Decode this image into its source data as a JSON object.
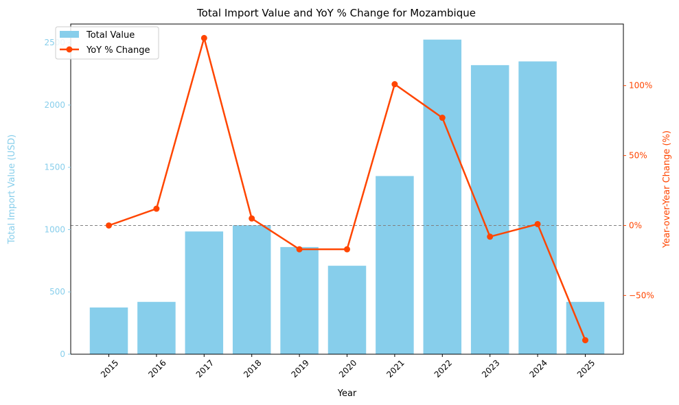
{
  "chart_data": {
    "type": "bar",
    "title": "Total Import Value and YoY % Change for Mozambique",
    "xlabel": "Year",
    "ylabel_left": "Total Import Value (USD)",
    "ylabel_right": "Year-over-Year Change (%)",
    "categories": [
      "2015",
      "2016",
      "2017",
      "2018",
      "2019",
      "2020",
      "2021",
      "2022",
      "2023",
      "2024",
      "2025"
    ],
    "series": [
      {
        "name": "Total Value",
        "type": "bar",
        "axis": "left",
        "color": "#87ceeb",
        "values": [
          375,
          420,
          985,
          1035,
          860,
          710,
          1430,
          2525,
          2320,
          2350,
          420
        ]
      },
      {
        "name": "YoY % Change",
        "type": "line",
        "axis": "right",
        "color": "#ff4500",
        "values": [
          0,
          12,
          134,
          5,
          -17,
          -17,
          101,
          77,
          -8,
          1,
          -82
        ]
      }
    ],
    "ylim_left": [
      0,
      2650
    ],
    "ylim_right": [
      -92,
      144
    ],
    "yticks_left": [
      0,
      500,
      1000,
      1500,
      2000,
      2500
    ],
    "yticks_right": [
      -50,
      0,
      50,
      100
    ],
    "ytick_right_labels": [
      "−50%",
      "0%",
      "50%",
      "100%"
    ],
    "reference_line": {
      "axis": "right",
      "value": 0,
      "style": "dashed",
      "color": "#808080"
    },
    "legend": "top-left",
    "grid": false
  }
}
